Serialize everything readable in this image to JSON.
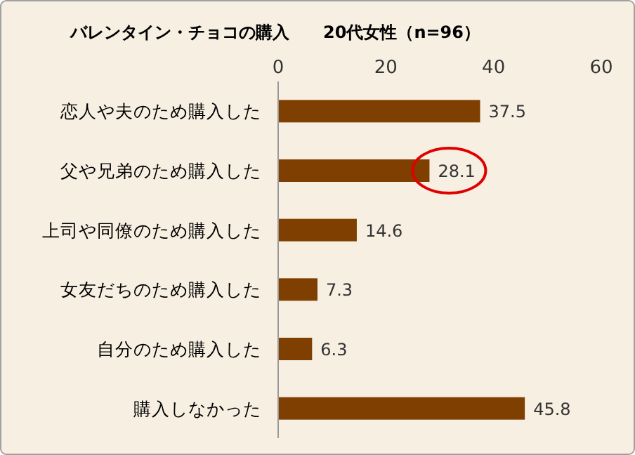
{
  "chart_data": {
    "type": "bar",
    "orientation": "horizontal",
    "title": "バレンタイン・チョコの購入　　20代女性（n=96）",
    "categories": [
      "恋人や夫のため購入した",
      "父や兄弟のため購入した",
      "上司や同僚のため購入した",
      "女友だちのため購入した",
      "自分のため購入した",
      "購入しなかった"
    ],
    "values": [
      37.5,
      28.1,
      14.6,
      7.3,
      6.3,
      45.8
    ],
    "color": "#7f3f00",
    "xlim": [
      0,
      60
    ],
    "xticks": [
      0,
      20,
      40,
      60
    ],
    "grid": false,
    "data_labels": true
  }
}
